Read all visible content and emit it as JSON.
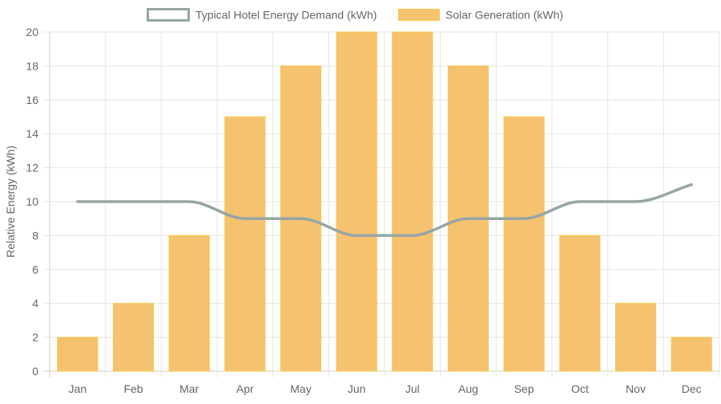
{
  "chart_data": {
    "type": "bar",
    "categories": [
      "Jan",
      "Feb",
      "Mar",
      "Apr",
      "May",
      "Jun",
      "Jul",
      "Aug",
      "Sep",
      "Oct",
      "Nov",
      "Dec"
    ],
    "series": [
      {
        "name": "Typical Hotel Energy Demand (kWh)",
        "type": "line",
        "values": [
          10,
          10,
          10,
          9,
          9,
          8,
          8,
          9,
          9,
          10,
          10,
          11
        ],
        "color": "#95a5a6"
      },
      {
        "name": "Solar Generation (kWh)",
        "type": "bar",
        "values": [
          2,
          4,
          8,
          15,
          18,
          20,
          20,
          18,
          15,
          8,
          4,
          2
        ],
        "color": "#f5c26f",
        "border_color": "#f2c94c"
      }
    ],
    "title": "",
    "xlabel": "",
    "ylabel": "Relative Energy (kWh)",
    "ylim": [
      0,
      20
    ],
    "yticks": [
      0,
      2,
      4,
      6,
      8,
      10,
      12,
      14,
      16,
      18,
      20
    ],
    "grid": true,
    "legend_position": "top-center"
  }
}
